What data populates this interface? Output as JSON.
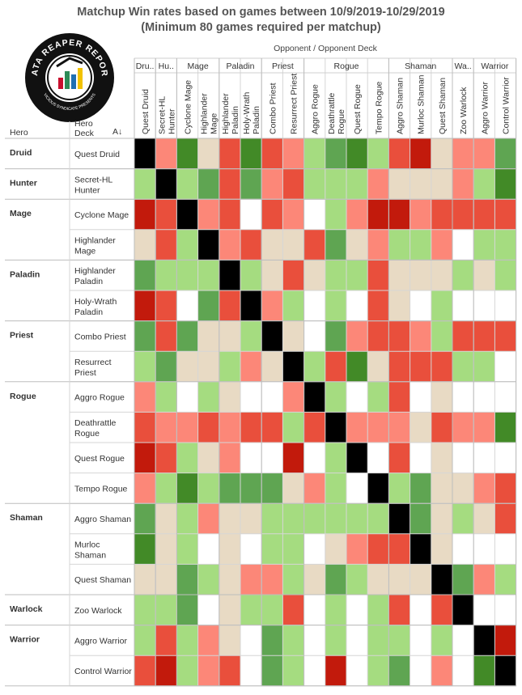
{
  "title": {
    "line1": "Matchup Win rates based on games between 10/9/2019-10/29/2019",
    "line2": "(Minimum 80 games required per matchup)"
  },
  "logo": {
    "text_top": "DATA REAPER REPORT",
    "text_bottom": "VICIOUS SYNDICATE PRESENTS",
    "colors": {
      "ring": "#111111",
      "inner": "#ffffff",
      "accent_red": "#c8102e",
      "accent_green": "#2e8b57",
      "accent_yellow": "#f2c200",
      "accent_blue": "#1f6fb2"
    }
  },
  "opponent_header": "Opponent  /  Opponent Deck",
  "row_header": {
    "hero": "Hero",
    "deck": "Hero\nDeck",
    "sort_icon": "sort-ascending-icon"
  },
  "colors": {
    "DG": "#428a27",
    "MG": "#5fa552",
    "LG": "#a5dc80",
    "BG": "#e8dac4",
    "SA": "#fc8778",
    "RD": "#e94f3c",
    "DR": "#c21a0c",
    "K": "#000000",
    "W": "#ffffff"
  },
  "chart_data": {
    "type": "heatmap",
    "title": "Matchup Win rates based on games between 10/9/2019-10/29/2019",
    "subtitle": "(Minimum 80 games required per matchup)",
    "xlabel": "Opponent  /  Opponent Deck",
    "ylabel": "Hero / Hero Deck",
    "legend": "none",
    "column_groups": [
      {
        "hero": "Dru..",
        "decks": [
          "Quest Druid"
        ]
      },
      {
        "hero": "Hu..",
        "decks": [
          "Secret-HL Hunter"
        ]
      },
      {
        "hero": "Mage",
        "decks": [
          "Cyclone Mage",
          "Highlander Mage"
        ]
      },
      {
        "hero": "Paladin",
        "decks": [
          "Highlander Paladin",
          "Holy-Wrath Paladin"
        ]
      },
      {
        "hero": "Priest",
        "decks": [
          "Combo Priest",
          "Resurrect Priest"
        ]
      },
      {
        "hero": "Rogue",
        "decks": [
          "Aggro Rogue",
          "Deathrattle Rogue",
          "Quest Rogue",
          "Tempo Rogue"
        ]
      },
      {
        "hero": "Shaman",
        "decks": [
          "Aggro Shaman",
          "Murloc Shaman",
          "Quest Shaman"
        ]
      },
      {
        "hero": "Wa..",
        "decks": [
          "Zoo Warlock"
        ]
      },
      {
        "hero": "Warrior",
        "decks": [
          "Aggro Warrior",
          "Control Warrior"
        ]
      }
    ],
    "column_labels": [
      [
        "Quest Druid"
      ],
      [
        "Secret-HL",
        "Hunter"
      ],
      [
        "Cyclone Mage"
      ],
      [
        "Highlander",
        "Mage"
      ],
      [
        "Highlander",
        "Paladin"
      ],
      [
        "Holy-Wrath",
        "Paladin"
      ],
      [
        "Combo Priest"
      ],
      [
        "Resurrect Priest"
      ],
      [
        "Aggro Rogue"
      ],
      [
        "Deathrattle",
        "Rogue"
      ],
      [
        "Quest Rogue"
      ],
      [
        "Tempo Rogue"
      ],
      [
        "Aggro Shaman"
      ],
      [
        "Murloc Shaman"
      ],
      [
        "Quest Shaman"
      ],
      [
        "Zoo Warlock"
      ],
      [
        "Aggro Warrior"
      ],
      [
        "Control Warrior"
      ]
    ],
    "row_groups": [
      {
        "hero": "Druid",
        "decks": [
          "Quest Druid"
        ]
      },
      {
        "hero": "Hunter",
        "decks": [
          "Secret-HL\nHunter"
        ]
      },
      {
        "hero": "Mage",
        "decks": [
          "Cyclone Mage",
          "Highlander\nMage"
        ]
      },
      {
        "hero": "Paladin",
        "decks": [
          "Highlander\nPaladin",
          "Holy-Wrath\nPaladin"
        ]
      },
      {
        "hero": "Priest",
        "decks": [
          "Combo Priest",
          "Resurrect\nPriest"
        ]
      },
      {
        "hero": "Rogue",
        "decks": [
          "Aggro Rogue",
          "Deathrattle\nRogue",
          "Quest Rogue",
          "Tempo Rogue"
        ]
      },
      {
        "hero": "Shaman",
        "decks": [
          "Aggro Shaman",
          "Murloc\nShaman",
          "Quest Shaman"
        ]
      },
      {
        "hero": "Warlock",
        "decks": [
          "Zoo Warlock"
        ]
      },
      {
        "hero": "Warrior",
        "decks": [
          "Aggro Warrior",
          "Control Warrior"
        ]
      }
    ],
    "color_scale": "DG=strongly favored, MG, LG, BG=even, SA, RD, DR=strongly unfavored, K=mirror, W=no data",
    "cells": [
      [
        "K",
        "SA",
        "DG",
        "BG",
        "RD",
        "DG",
        "RD",
        "SA",
        "LG",
        "MG",
        "DG",
        "LG",
        "RD",
        "DR",
        "BG",
        "SA",
        "SA",
        "MG"
      ],
      [
        "LG",
        "K",
        "LG",
        "MG",
        "RD",
        "MG",
        "SA",
        "RD",
        "LG",
        "LG",
        "LG",
        "SA",
        "BG",
        "BG",
        "BG",
        "SA",
        "LG",
        "DG"
      ],
      [
        "DR",
        "RD",
        "K",
        "SA",
        "RD",
        "W",
        "RD",
        "SA",
        "W",
        "LG",
        "SA",
        "DR",
        "DR",
        "SA",
        "RD",
        "RD",
        "RD",
        "RD"
      ],
      [
        "BG",
        "RD",
        "LG",
        "K",
        "SA",
        "RD",
        "BG",
        "BG",
        "RD",
        "MG",
        "BG",
        "SA",
        "LG",
        "LG",
        "SA",
        "W",
        "LG",
        "LG"
      ],
      [
        "MG",
        "LG",
        "LG",
        "LG",
        "K",
        "LG",
        "BG",
        "RD",
        "BG",
        "LG",
        "LG",
        "RD",
        "BG",
        "BG",
        "BG",
        "LG",
        "BG",
        "LG"
      ],
      [
        "DR",
        "RD",
        "W",
        "MG",
        "RD",
        "K",
        "SA",
        "LG",
        "W",
        "LG",
        "W",
        "RD",
        "BG",
        "W",
        "LG",
        "W",
        "W",
        "W"
      ],
      [
        "MG",
        "RD",
        "MG",
        "BG",
        "BG",
        "LG",
        "K",
        "BG",
        "W",
        "MG",
        "SA",
        "RD",
        "RD",
        "SA",
        "LG",
        "RD",
        "RD",
        "RD"
      ],
      [
        "LG",
        "MG",
        "BG",
        "BG",
        "LG",
        "SA",
        "BG",
        "K",
        "LG",
        "RD",
        "DG",
        "BG",
        "RD",
        "RD",
        "RD",
        "LG",
        "LG",
        "W"
      ],
      [
        "SA",
        "LG",
        "W",
        "LG",
        "BG",
        "W",
        "W",
        "SA",
        "K",
        "LG",
        "W",
        "LG",
        "RD",
        "W",
        "BG",
        "W",
        "W",
        "W"
      ],
      [
        "RD",
        "SA",
        "SA",
        "RD",
        "SA",
        "RD",
        "RD",
        "LG",
        "RD",
        "K",
        "SA",
        "SA",
        "SA",
        "BG",
        "RD",
        "SA",
        "SA",
        "DG"
      ],
      [
        "DR",
        "RD",
        "LG",
        "BG",
        "SA",
        "W",
        "W",
        "DR",
        "W",
        "LG",
        "K",
        "W",
        "RD",
        "W",
        "BG",
        "W",
        "W",
        "W"
      ],
      [
        "SA",
        "LG",
        "DG",
        "LG",
        "MG",
        "MG",
        "MG",
        "BG",
        "SA",
        "LG",
        "W",
        "K",
        "LG",
        "MG",
        "BG",
        "BG",
        "SA",
        "RD"
      ],
      [
        "MG",
        "BG",
        "LG",
        "SA",
        "BG",
        "BG",
        "LG",
        "LG",
        "LG",
        "LG",
        "LG",
        "LG",
        "K",
        "MG",
        "BG",
        "LG",
        "BG",
        "RD"
      ],
      [
        "DG",
        "BG",
        "LG",
        "W",
        "BG",
        "W",
        "LG",
        "LG",
        "W",
        "BG",
        "SA",
        "RD",
        "RD",
        "K",
        "BG",
        "W",
        "W",
        "W"
      ],
      [
        "BG",
        "BG",
        "MG",
        "LG",
        "BG",
        "SA",
        "SA",
        "LG",
        "BG",
        "MG",
        "LG",
        "BG",
        "BG",
        "BG",
        "K",
        "MG",
        "SA",
        "LG"
      ],
      [
        "LG",
        "LG",
        "MG",
        "W",
        "BG",
        "LG",
        "LG",
        "RD",
        "W",
        "LG",
        "W",
        "LG",
        "RD",
        "W",
        "RD",
        "K",
        "W",
        "W"
      ],
      [
        "LG",
        "RD",
        "LG",
        "SA",
        "BG",
        "W",
        "MG",
        "LG",
        "W",
        "LG",
        "W",
        "LG",
        "LG",
        "W",
        "LG",
        "W",
        "K",
        "DR"
      ],
      [
        "RD",
        "DR",
        "LG",
        "SA",
        "RD",
        "W",
        "MG",
        "LG",
        "W",
        "DR",
        "W",
        "LG",
        "MG",
        "W",
        "SA",
        "W",
        "DG",
        "K"
      ]
    ]
  }
}
